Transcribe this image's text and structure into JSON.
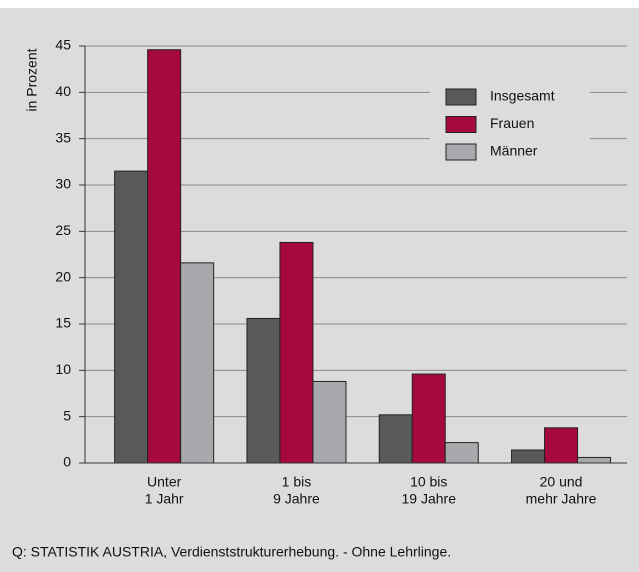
{
  "chart_data": {
    "type": "bar",
    "y_label": "in Prozent",
    "categories": [
      [
        "Unter",
        "1 Jahr"
      ],
      [
        "1 bis",
        "9 Jahre"
      ],
      [
        "10 bis",
        "19 Jahre"
      ],
      [
        "20 und",
        "mehr Jahre"
      ]
    ],
    "series": [
      {
        "name": "Insgesamt",
        "color": "#58595b",
        "values": [
          31.5,
          15.6,
          5.2,
          1.4
        ]
      },
      {
        "name": "Frauen",
        "color": "#a6093d",
        "values": [
          44.6,
          23.8,
          9.6,
          3.8
        ]
      },
      {
        "name": "Männer",
        "color": "#a7a9ac",
        "values": [
          21.6,
          8.8,
          2.2,
          0.6
        ]
      }
    ],
    "ylim": [
      0,
      45
    ],
    "yticks": [
      0,
      5,
      10,
      15,
      20,
      25,
      30,
      35,
      40,
      45
    ],
    "grid": true,
    "legend": "upper right",
    "source": "Q: STATISTIK AUSTRIA, Verdienststrukturerhebung. - Ohne Lehrlinge."
  }
}
